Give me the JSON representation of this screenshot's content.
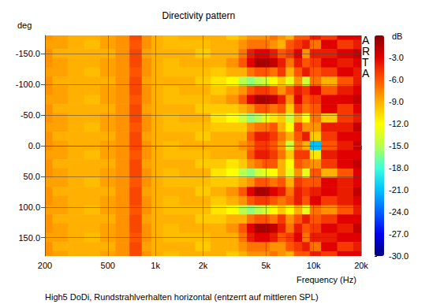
{
  "chart_data": {
    "type": "heatmap",
    "title": "Directivity pattern",
    "subtitle": "High5 DoDi, Rundstrahlverhalten horizontal (entzerrt auf mittleren SPL)",
    "xlabel": "Frequency (Hz)",
    "ylabel": "deg",
    "annotation": "ARTA",
    "log": "x",
    "grid": true,
    "xlim": [
      200,
      20000
    ],
    "xticks": [
      200,
      500,
      {
        "value": 1000,
        "label": "1k"
      },
      {
        "value": 2000,
        "label": "2k"
      },
      {
        "value": 5000,
        "label": "5k"
      },
      {
        "value": 10000,
        "label": "10k"
      },
      {
        "value": 20000,
        "label": "20k"
      }
    ],
    "ylim": [
      -180,
      180
    ],
    "yticks": [
      {
        "value": -150,
        "label": "-150.0"
      },
      {
        "value": -100,
        "label": "-100.0"
      },
      {
        "value": -50,
        "label": "-50.0"
      },
      {
        "value": 0,
        "label": "0.0"
      },
      {
        "value": 50,
        "label": "50.0"
      },
      {
        "value": 100,
        "label": "100.0"
      },
      {
        "value": 150,
        "label": "150.0"
      }
    ],
    "colorbar": {
      "label": "dB",
      "range": [
        -30,
        0
      ],
      "ticks": [
        {
          "value": -3,
          "label": "-3.0"
        },
        {
          "value": -6,
          "label": "-6.0"
        },
        {
          "value": -9,
          "label": "-9.0"
        },
        {
          "value": -12,
          "label": "-12.0"
        },
        {
          "value": -15,
          "label": "-15.0"
        },
        {
          "value": -18,
          "label": "-18.0"
        },
        {
          "value": -21,
          "label": "-21.0"
        },
        {
          "value": -24,
          "label": "-24.0"
        },
        {
          "value": -27,
          "label": "-27.0"
        },
        {
          "value": -30,
          "label": "-30.0"
        }
      ]
    },
    "x": [
      200,
      250,
      315,
      400,
      500,
      630,
      750,
      900,
      1000,
      1250,
      1600,
      2000,
      2500,
      3150,
      3600,
      4000,
      4500,
      5000,
      5600,
      6300,
      7100,
      8000,
      9000,
      10000,
      12500,
      16000,
      20000
    ],
    "y": [
      -180,
      -165,
      -150,
      -135,
      -120,
      -105,
      -90,
      -75,
      -60,
      -45,
      -30,
      -15,
      0,
      15,
      30,
      45,
      60,
      75,
      90,
      105,
      120,
      135,
      150,
      165,
      180
    ],
    "values": [
      [
        -8,
        -8.5,
        -9,
        -9,
        -8.5,
        -8,
        -5.5,
        -8,
        -9,
        -9.5,
        -9,
        -9,
        -9,
        -10,
        -9,
        -8,
        -8,
        -8,
        -7,
        -8,
        -9,
        -6,
        -6,
        -4,
        -5,
        -3,
        -3
      ],
      [
        -8.5,
        -8.5,
        -9,
        -9.5,
        -8.5,
        -8,
        -6,
        -8,
        -9,
        -9.5,
        -9.5,
        -9.5,
        -9,
        -9,
        -8,
        -7,
        -7,
        -7,
        -8,
        -9,
        -6,
        -5,
        -4,
        -7,
        -3,
        -5,
        -4
      ],
      [
        -8,
        -9,
        -9,
        -9,
        -9,
        -8,
        -5.5,
        -8.5,
        -9,
        -9,
        -9,
        -10,
        -9,
        -9,
        -7,
        -4,
        -3,
        -3,
        -4,
        -6,
        -5,
        -3,
        -8,
        -4,
        -4,
        -3,
        -2
      ],
      [
        -8,
        -8.5,
        -9,
        -9,
        -8.5,
        -8,
        -5.5,
        -8,
        -9,
        -9.5,
        -9,
        -9,
        -9,
        -8,
        -6,
        -3,
        -1,
        -1,
        -2,
        -4,
        -7,
        -4,
        -6,
        -5,
        -3,
        -4,
        -3
      ],
      [
        -8.5,
        -8.5,
        -9,
        -9.5,
        -8.5,
        -8,
        -6,
        -8,
        -9,
        -9.5,
        -9.5,
        -9.5,
        -10,
        -9,
        -9,
        -7,
        -6,
        -6,
        -7,
        -5,
        -9,
        -6,
        -4,
        -6,
        -5,
        -3,
        -4
      ],
      [
        -8,
        -9,
        -9,
        -9,
        -9,
        -8,
        -5.5,
        -8.5,
        -9,
        -9,
        -9,
        -10,
        -11,
        -12,
        -15,
        -16,
        -15,
        -14,
        -12,
        -10,
        -13,
        -8,
        -14,
        -7,
        -9,
        -6,
        -4
      ],
      [
        -8,
        -8.5,
        -9,
        -9,
        -8.5,
        -8,
        -5.5,
        -8,
        -9,
        -9.5,
        -9,
        -9,
        -10,
        -9,
        -8,
        -6,
        -5,
        -5,
        -6,
        -8,
        -6,
        -4,
        -5,
        -3,
        -6,
        -4,
        -3
      ],
      [
        -8.5,
        -8.5,
        -9,
        -9.5,
        -8.5,
        -8,
        -6,
        -8,
        -9,
        -9.5,
        -9.5,
        -9.5,
        -9,
        -8,
        -6,
        -3,
        -1,
        -1,
        -2,
        -4,
        -8,
        -3,
        -6,
        -5,
        -3,
        -3,
        -2
      ],
      [
        -8,
        -9,
        -9,
        -9,
        -9,
        -8,
        -5.5,
        -8.5,
        -9,
        -9,
        -9,
        -10,
        -10,
        -10,
        -9,
        -8,
        -6,
        -6,
        -7,
        -6,
        -10,
        -5,
        -7,
        -6,
        -3,
        -5,
        -3
      ],
      [
        -8,
        -8.5,
        -9,
        -9,
        -8.5,
        -8,
        -5.5,
        -8,
        -9,
        -9.5,
        -9,
        -9,
        -11,
        -12,
        -14,
        -16,
        -15,
        -13,
        -11,
        -10,
        -14,
        -9,
        -12,
        -7,
        -10,
        -5,
        -4
      ],
      [
        -8.5,
        -8.5,
        -9,
        -9.5,
        -8.5,
        -8,
        -6,
        -8,
        -9,
        -9.5,
        -9.5,
        -9.5,
        -10,
        -10,
        -10,
        -8,
        -7,
        -7,
        -6,
        -9,
        -12,
        -5,
        -8,
        -8,
        -4,
        -4,
        -2
      ],
      [
        -8,
        -9,
        -9,
        -9,
        -9,
        -8,
        -5.5,
        -8.5,
        -9,
        -9,
        -9,
        -10,
        -9,
        -9,
        -9,
        -6,
        -4,
        -4,
        -5,
        -7,
        -9,
        -6,
        -4,
        -10,
        -5,
        -3,
        -3
      ],
      [
        -8,
        -8.5,
        -9,
        -9,
        -8.5,
        -8,
        -5.5,
        -8,
        -9,
        -9.5,
        -9,
        -9,
        -9,
        -9,
        -8,
        -7,
        -5,
        -5,
        -6,
        -8,
        -14,
        -7,
        -9,
        -21,
        -6,
        -4,
        -2
      ],
      [
        -8.5,
        -8.5,
        -9,
        -9.5,
        -8.5,
        -8,
        -6,
        -8,
        -9,
        -9.5,
        -9.5,
        -9.5,
        -9,
        -9,
        -9,
        -6,
        -4,
        -4,
        -5,
        -7,
        -10,
        -5,
        -5,
        -11,
        -4,
        -3,
        -3
      ],
      [
        -8,
        -9,
        -9,
        -9,
        -9,
        -8,
        -5.5,
        -8.5,
        -9,
        -9,
        -9,
        -10,
        -10,
        -11,
        -10,
        -8,
        -7,
        -6,
        -6,
        -9,
        -12,
        -6,
        -7,
        -8,
        -5,
        -3,
        -2
      ],
      [
        -8,
        -8.5,
        -9,
        -9,
        -8.5,
        -8,
        -5.5,
        -8,
        -9,
        -9.5,
        -9,
        -9,
        -11,
        -12,
        -15,
        -16,
        -14,
        -13,
        -12,
        -9,
        -13,
        -8,
        -13,
        -6,
        -9,
        -6,
        -3
      ],
      [
        -8.5,
        -8.5,
        -9,
        -9.5,
        -8.5,
        -8,
        -6,
        -8,
        -9,
        -9.5,
        -9.5,
        -9.5,
        -10,
        -10,
        -9,
        -8,
        -6,
        -6,
        -7,
        -6,
        -9,
        -5,
        -6,
        -6,
        -3,
        -4,
        -3
      ],
      [
        -8,
        -9,
        -9,
        -9,
        -9,
        -8,
        -5.5,
        -8.5,
        -9,
        -9,
        -9,
        -10,
        -9,
        -8,
        -6,
        -3,
        -1,
        -1,
        -3,
        -4,
        -7,
        -4,
        -5,
        -4,
        -3,
        -4,
        -2
      ],
      [
        -8,
        -8.5,
        -9,
        -9,
        -8.5,
        -8,
        -5.5,
        -8,
        -9,
        -9.5,
        -9,
        -9,
        -10,
        -9,
        -8,
        -6,
        -5,
        -5,
        -6,
        -7,
        -6,
        -4,
        -6,
        -3,
        -5,
        -4,
        -3
      ],
      [
        -8.5,
        -8.5,
        -9,
        -9.5,
        -8.5,
        -8,
        -6,
        -8,
        -9,
        -9.5,
        -9.5,
        -9.5,
        -11,
        -12,
        -15,
        -16,
        -15,
        -14,
        -12,
        -10,
        -12,
        -9,
        -13,
        -7,
        -8,
        -6,
        -4
      ],
      [
        -8,
        -9,
        -9,
        -9,
        -9,
        -8,
        -5.5,
        -8.5,
        -9,
        -9,
        -9,
        -10,
        -10,
        -9,
        -9,
        -7,
        -6,
        -6,
        -7,
        -5,
        -8,
        -6,
        -4,
        -6,
        -5,
        -3,
        -3
      ],
      [
        -8,
        -8.5,
        -9,
        -9,
        -8.5,
        -8,
        -5.5,
        -8,
        -9,
        -9.5,
        -9,
        -9,
        -9,
        -8,
        -6,
        -3,
        -1,
        -1,
        -2,
        -4,
        -7,
        -4,
        -6,
        -5,
        -3,
        -4,
        -2
      ],
      [
        -8.5,
        -8.5,
        -9,
        -9.5,
        -8.5,
        -8,
        -6,
        -8,
        -9,
        -9.5,
        -9.5,
        -9.5,
        -9,
        -9,
        -7,
        -4,
        -3,
        -3,
        -4,
        -6,
        -5,
        -3,
        -7,
        -4,
        -4,
        -3,
        -3
      ],
      [
        -8,
        -9,
        -9,
        -9,
        -9,
        -8,
        -5.5,
        -8.5,
        -9,
        -9,
        -9,
        -10,
        -9,
        -9,
        -8,
        -7,
        -7,
        -7,
        -8,
        -8,
        -6,
        -5,
        -4,
        -7,
        -3,
        -5,
        -4
      ],
      [
        -8,
        -8.5,
        -9,
        -9,
        -8.5,
        -8,
        -5.5,
        -8,
        -9,
        -9.5,
        -9,
        -9,
        -9,
        -10,
        -9,
        -8,
        -8,
        -8,
        -7,
        -8,
        -9,
        -6,
        -6,
        -4,
        -5,
        -3,
        -3
      ]
    ]
  }
}
